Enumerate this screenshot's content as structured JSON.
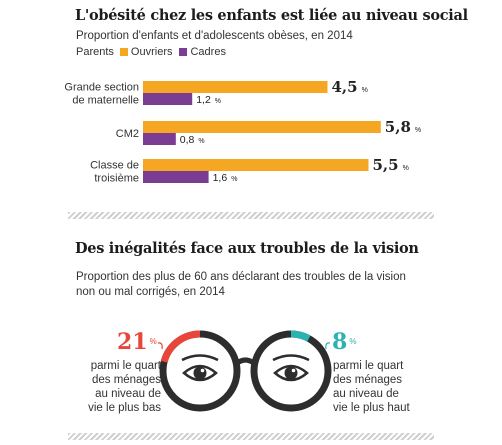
{
  "chart1": {
    "title": "L'obésité chez les enfants est liée au niveau social",
    "subtitle": "Proportion d'enfants et d'adolescents obèses, en 2014",
    "legend_title": "Parents",
    "colors": {
      "ouvriers": "#f5a623",
      "cadres": "#7b3c93"
    }
  },
  "chart_data": [
    {
      "type": "bar",
      "orientation": "horizontal",
      "title": "L'obésité chez les enfants est liée au niveau social",
      "subtitle": "Proportion d'enfants et d'adolescents obèses, en 2014",
      "categories": [
        "Grande section\nde maternelle",
        "CM2",
        "Classe de\ntroisième"
      ],
      "series": [
        {
          "name": "Ouvriers",
          "color": "#f5a623",
          "values": [
            4.5,
            5.8,
            5.5
          ],
          "labels": [
            "4,5",
            "5,8",
            "5,5"
          ]
        },
        {
          "name": "Cadres",
          "color": "#7b3c93",
          "values": [
            1.2,
            0.8,
            1.6
          ],
          "labels": [
            "1,2",
            "0,8",
            "1,6"
          ]
        }
      ],
      "unit": "%",
      "legend_title": "Parents",
      "legend_position": "top-left",
      "grid": false
    },
    {
      "type": "table",
      "title": "Des inégalités face aux troubles de la vision",
      "subtitle": "Proportion des plus de 60 ans déclarant des troubles de la vision non ou mal corrigés, en 2014",
      "categories": [
        "parmi le quart des ménages au niveau de vie le plus bas",
        "parmi le quart des ménages au niveau de vie le plus haut"
      ],
      "values": [
        21,
        8
      ],
      "unit": "%"
    }
  ],
  "chart2": {
    "title": "Des inégalités face aux troubles de la vision",
    "subtitle": "Proportion des plus de 60 ans déclarant des troubles de la vision non ou mal corrigés, en 2014",
    "left": {
      "value": "21",
      "unit": "%",
      "label": "parmi le quart des ménages au niveau de vie le plus bas",
      "color": "#e8463a"
    },
    "right": {
      "value": "8",
      "unit": "%",
      "label": "parmi le quart des ménages au niveau de vie le plus haut",
      "color": "#2bb3b1"
    },
    "glasses_color": "#2d2d2d"
  }
}
